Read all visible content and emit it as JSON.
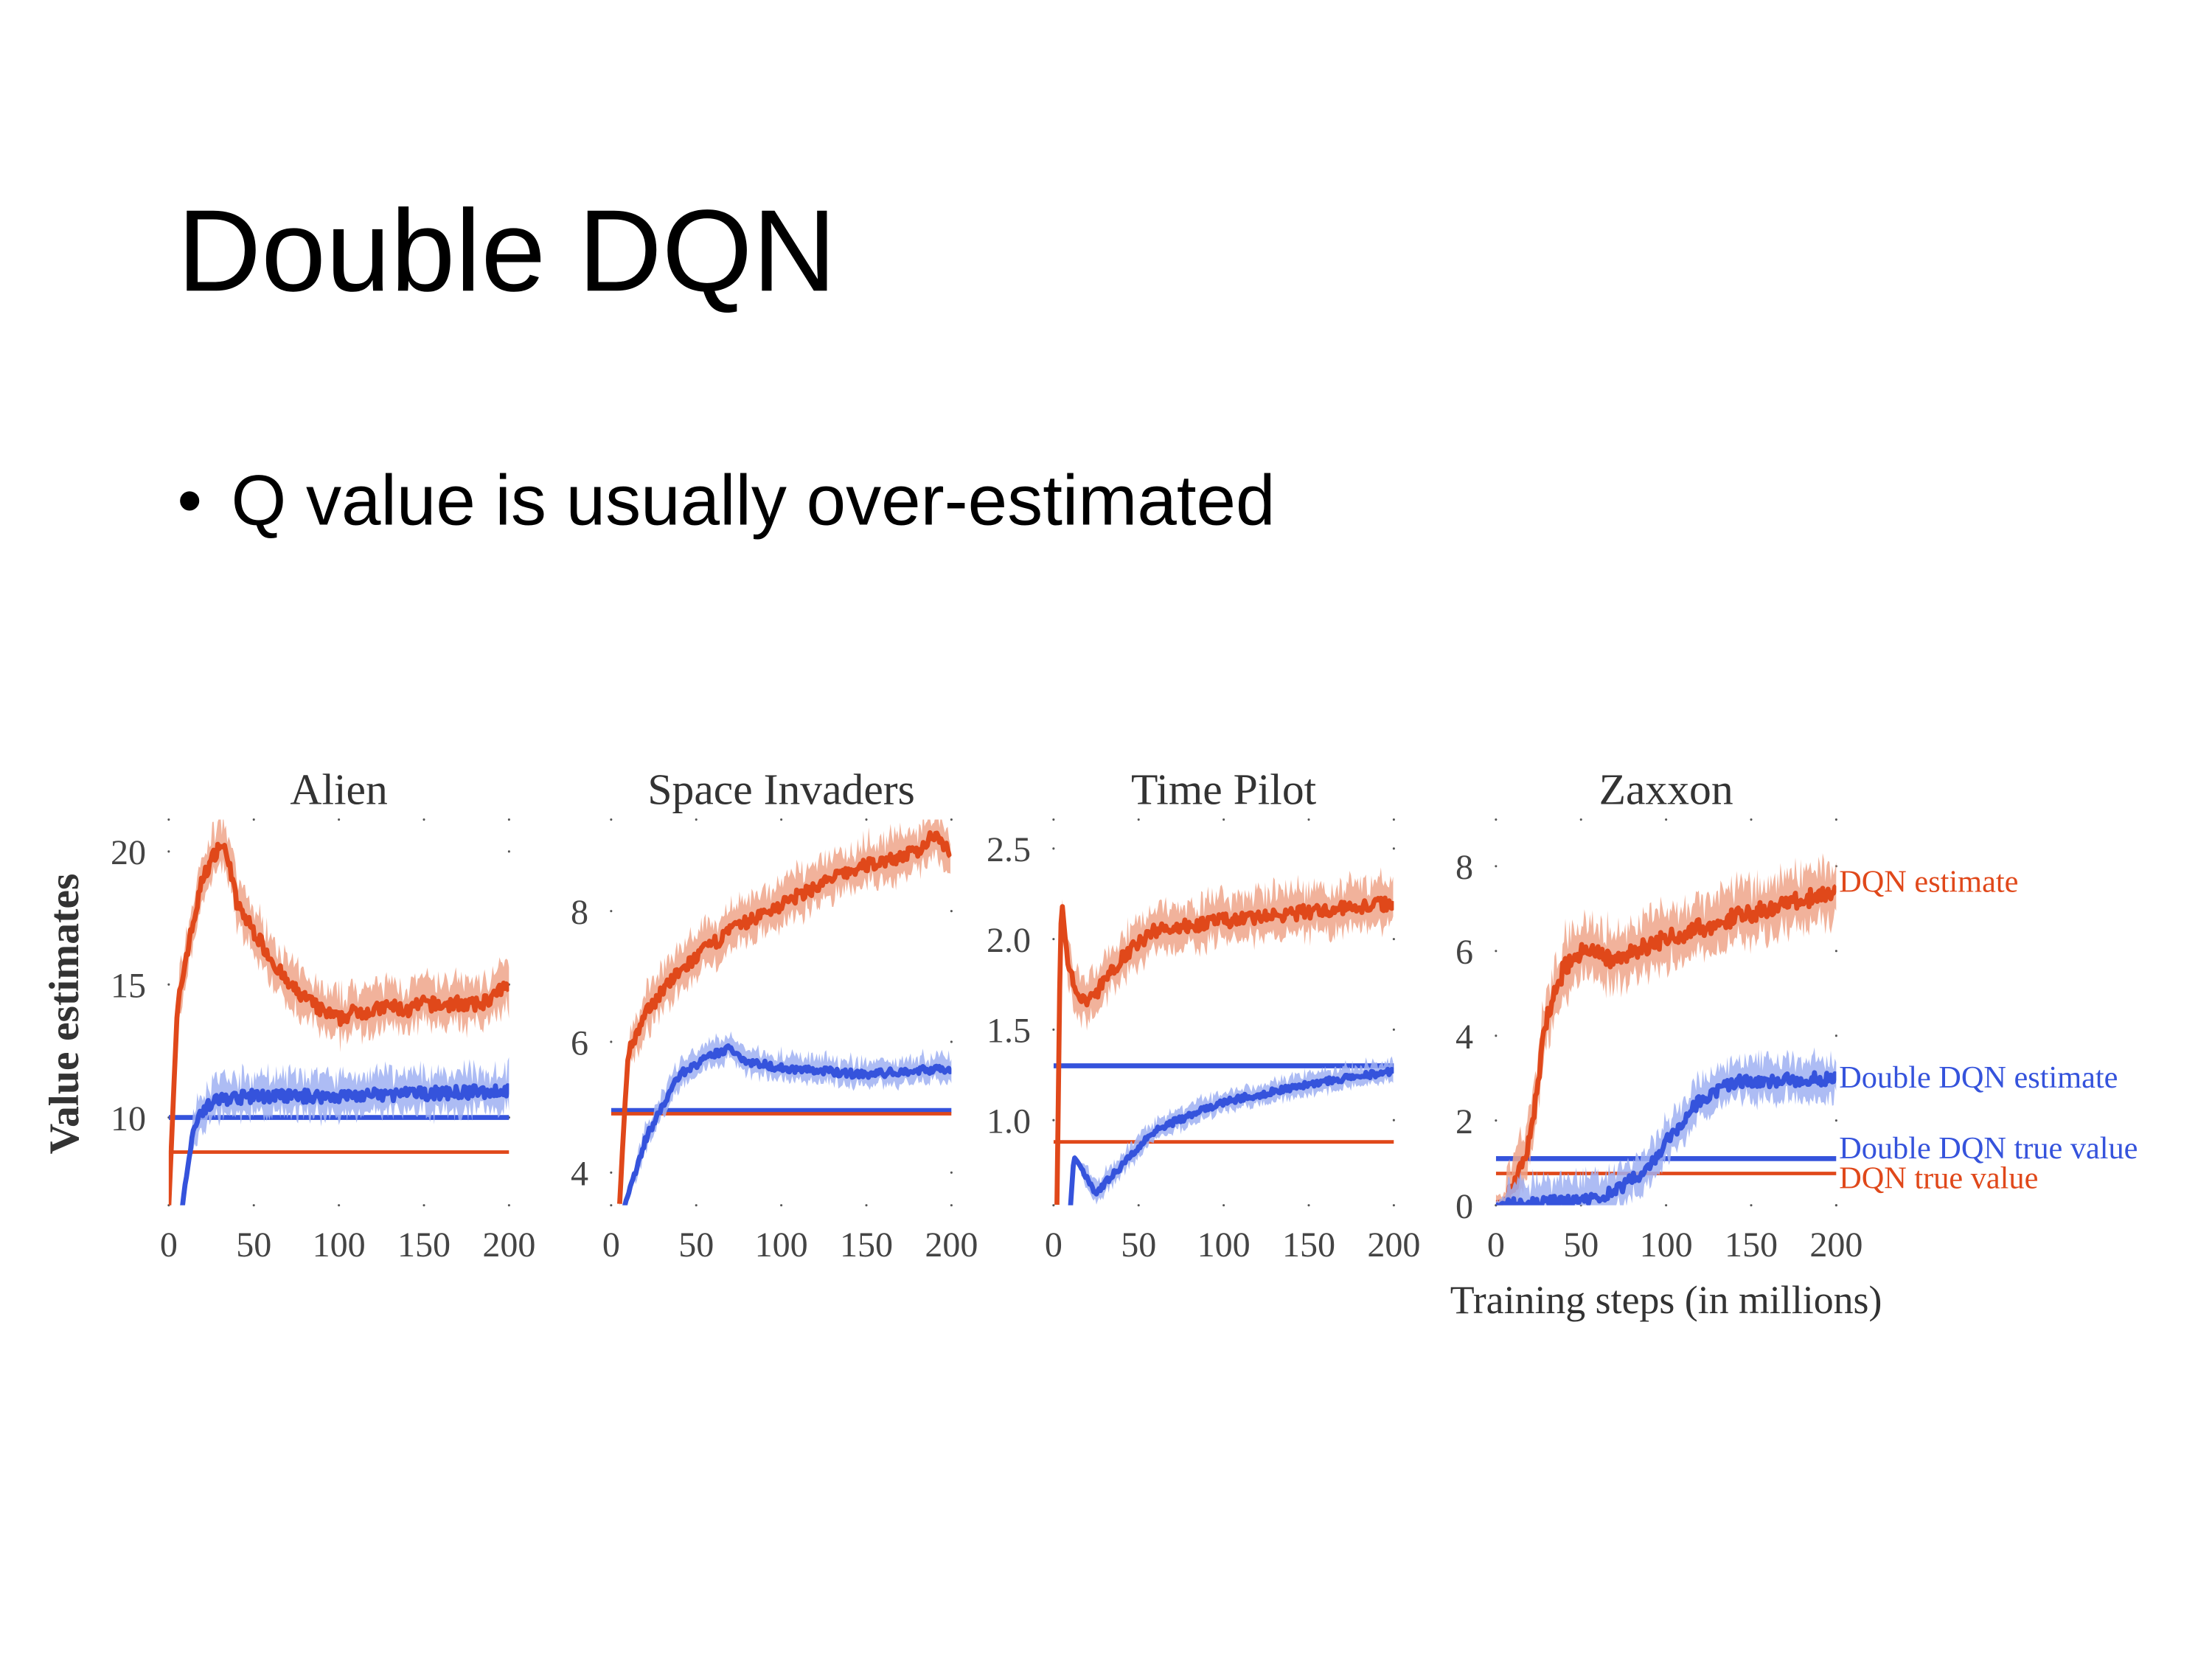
{
  "slide": {
    "title": "Double DQN",
    "bullets": [
      "Q value is usually over-estimated"
    ]
  },
  "colors": {
    "dqn": "#e0481a",
    "dqn_band": "#eea48a",
    "ddqn": "#3553dc",
    "ddqn_band": "#9fb0f2"
  },
  "chart_data": [
    {
      "type": "line",
      "title": "Alien",
      "xlabel": "",
      "ylabel": "Value estimates",
      "xlim": [
        0,
        200
      ],
      "ylim": [
        6.7,
        21.2
      ],
      "xticks": [
        0,
        50,
        100,
        150,
        200
      ],
      "yticks": [
        10,
        15,
        20
      ],
      "series": [
        {
          "key": "dqn_est",
          "x": [
            0,
            5,
            10,
            20,
            30,
            35,
            40,
            50,
            60,
            70,
            80,
            90,
            100,
            110,
            120,
            130,
            140,
            150,
            160,
            170,
            180,
            190,
            200
          ],
          "y": [
            6.7,
            14,
            16,
            19,
            20.3,
            19.8,
            18,
            17,
            16,
            15,
            14.5,
            14,
            13.7,
            14,
            14,
            14.2,
            14,
            14.3,
            14.2,
            14.3,
            14.2,
            14.5,
            15
          ],
          "spread": 0.9
        },
        {
          "key": "ddqn_est",
          "x": [
            8,
            12,
            15,
            20,
            30,
            50,
            100,
            150,
            200
          ],
          "y": [
            6.7,
            8.5,
            9.8,
            10.3,
            10.7,
            10.8,
            10.8,
            10.9,
            11
          ],
          "spread": 0.8
        },
        {
          "key": "ddqn_true",
          "value": 10.0
        },
        {
          "key": "dqn_true",
          "value": 8.7
        }
      ]
    },
    {
      "type": "line",
      "title": "Space Invaders",
      "xlabel": "",
      "ylabel": "",
      "xlim": [
        0,
        200
      ],
      "ylim": [
        3.5,
        9.4
      ],
      "xticks": [
        0,
        50,
        100,
        150,
        200
      ],
      "yticks": [
        4,
        6,
        8
      ],
      "series": [
        {
          "key": "dqn_est",
          "x": [
            5,
            8,
            10,
            20,
            30,
            50,
            70,
            100,
            130,
            150,
            180,
            190,
            200
          ],
          "y": [
            3.5,
            5,
            5.8,
            6.4,
            6.8,
            7.3,
            7.7,
            8.1,
            8.5,
            8.7,
            8.9,
            9.2,
            8.9
          ],
          "spread": 0.35
        },
        {
          "key": "ddqn_est",
          "x": [
            8,
            20,
            30,
            40,
            60,
            70,
            80,
            100,
            150,
            200
          ],
          "y": [
            3.5,
            4.5,
            5.0,
            5.5,
            5.8,
            5.9,
            5.7,
            5.6,
            5.5,
            5.6
          ],
          "spread": 0.2
        },
        {
          "key": "ddqn_true",
          "value": 4.95
        },
        {
          "key": "dqn_true",
          "value": 4.9
        }
      ]
    },
    {
      "type": "line",
      "title": "Time Pilot",
      "xlabel": "",
      "ylabel": "",
      "xlim": [
        0,
        200
      ],
      "ylim": [
        0.53,
        2.66
      ],
      "xticks": [
        0,
        50,
        100,
        150,
        200
      ],
      "yticks": [
        1.0,
        1.5,
        2.0,
        2.5
      ],
      "series": [
        {
          "key": "dqn_est",
          "x": [
            2,
            4,
            5,
            8,
            15,
            25,
            40,
            60,
            100,
            150,
            200
          ],
          "y": [
            0.53,
            2.0,
            2.2,
            1.9,
            1.65,
            1.7,
            1.9,
            2.05,
            2.1,
            2.15,
            2.2
          ],
          "spread": 0.13
        },
        {
          "key": "ddqn_est",
          "x": [
            10,
            12,
            25,
            40,
            60,
            100,
            150,
            200
          ],
          "y": [
            0.53,
            0.8,
            0.6,
            0.75,
            0.95,
            1.1,
            1.2,
            1.27
          ],
          "spread": 0.06
        },
        {
          "key": "ddqn_true",
          "value": 1.3
        },
        {
          "key": "dqn_true",
          "value": 0.88
        }
      ]
    },
    {
      "type": "line",
      "title": "Zaxxon",
      "xlabel": "Training steps (in millions)",
      "ylabel": "",
      "xlim": [
        0,
        200
      ],
      "ylim": [
        0,
        9.1
      ],
      "xticks": [
        0,
        50,
        100,
        150,
        200
      ],
      "yticks": [
        0,
        2,
        4,
        6,
        8
      ],
      "series": [
        {
          "key": "dqn_est",
          "name": "DQN estimate",
          "x": [
            0,
            10,
            20,
            25,
            30,
            40,
            50,
            70,
            100,
            150,
            200
          ],
          "y": [
            0,
            0.3,
            1.5,
            3,
            4.5,
            5.6,
            6.0,
            5.8,
            6.3,
            6.9,
            7.4
          ],
          "spread": 0.7
        },
        {
          "key": "ddqn_est",
          "name": "Double DQN estimate",
          "x": [
            0,
            50,
            70,
            90,
            100,
            120,
            140,
            200
          ],
          "y": [
            0,
            0.1,
            0.3,
            0.9,
            1.5,
            2.5,
            2.9,
            3.0
          ],
          "spread": 0.5
        },
        {
          "key": "ddqn_true",
          "name": "Double DQN true value",
          "value": 1.1
        },
        {
          "key": "dqn_true",
          "name": "DQN true value",
          "value": 0.75
        }
      ]
    }
  ]
}
